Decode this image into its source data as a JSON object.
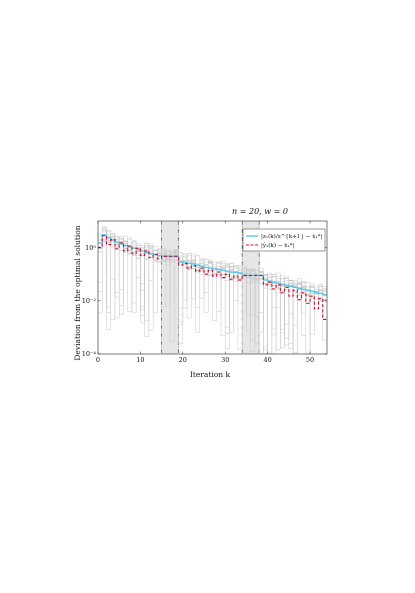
{
  "chart_data": {
    "type": "line",
    "title": "n = 20, w = 0",
    "xlabel": "Iteration k",
    "ylabel": "Deviation from the optimal solution",
    "xlim": [
      0,
      54
    ],
    "ylim": [
      0.0001,
      10
    ],
    "yscale": "log",
    "grid": false,
    "x_ticks": [
      0,
      10,
      20,
      30,
      40,
      50
    ],
    "y_ticks": [
      {
        "value": 0.0001,
        "label": "10⁻⁴"
      },
      {
        "value": 0.01,
        "label": "10⁻²"
      },
      {
        "value": 1,
        "label": "10⁰"
      }
    ],
    "shaded_regions": [
      [
        15,
        19
      ],
      [
        34,
        38
      ]
    ],
    "legend": {
      "position": "top-right",
      "entries": [
        {
          "label": "|z₁(k)/s^{k+1} − ẋ₁*|",
          "style": "solid",
          "color": "#5bc8e8"
        },
        {
          "label": "|ŷ₁(k) − ẋ₁*|",
          "style": "dashed",
          "color": "#c8102e"
        }
      ]
    },
    "series": [
      {
        "name": "|z₁(k)/s^{k+1} − ẋ₁*|",
        "style": "solid",
        "color": "#5bc8e8",
        "x": [
          0,
          1,
          2,
          3,
          4,
          5,
          6,
          7,
          8,
          9,
          10,
          11,
          12,
          13,
          14,
          15,
          16,
          17,
          18,
          19,
          20,
          21,
          22,
          23,
          24,
          25,
          26,
          27,
          28,
          29,
          30,
          31,
          32,
          33,
          34,
          35,
          36,
          37,
          38,
          39,
          40,
          41,
          42,
          43,
          44,
          45,
          46,
          47,
          48,
          49,
          50,
          51,
          52,
          53
        ],
        "values": [
          1.5,
          3.0,
          2.4,
          1.9,
          1.6,
          1.4,
          1.2,
          1.05,
          0.95,
          0.85,
          0.75,
          0.65,
          0.6,
          0.55,
          0.5,
          0.47,
          0.47,
          0.47,
          0.47,
          0.3,
          0.28,
          0.26,
          0.24,
          0.22,
          0.2,
          0.18,
          0.17,
          0.16,
          0.15,
          0.14,
          0.13,
          0.12,
          0.115,
          0.11,
          0.09,
          0.09,
          0.09,
          0.09,
          0.09,
          0.06,
          0.055,
          0.05,
          0.046,
          0.042,
          0.038,
          0.035,
          0.032,
          0.029,
          0.027,
          0.025,
          0.023,
          0.021,
          0.019,
          0.017
        ]
      },
      {
        "name": "|ŷ₁(k) − ẋ₁*|",
        "style": "dashed",
        "color": "#c8102e",
        "x": [
          0,
          1,
          2,
          3,
          4,
          5,
          6,
          7,
          8,
          9,
          10,
          11,
          12,
          13,
          14,
          15,
          16,
          17,
          18,
          19,
          20,
          21,
          22,
          23,
          24,
          25,
          26,
          27,
          28,
          29,
          30,
          31,
          32,
          33,
          34,
          35,
          36,
          37,
          38,
          39,
          40,
          41,
          42,
          43,
          44,
          45,
          46,
          47,
          48,
          49,
          50,
          51,
          52,
          53
        ],
        "values": [
          1.0,
          2.8,
          1.3,
          2.0,
          0.9,
          1.5,
          0.75,
          1.15,
          0.6,
          0.95,
          0.5,
          0.75,
          0.42,
          0.55,
          0.38,
          0.47,
          0.47,
          0.47,
          0.47,
          0.22,
          0.25,
          0.17,
          0.21,
          0.13,
          0.17,
          0.1,
          0.14,
          0.085,
          0.12,
          0.075,
          0.1,
          0.065,
          0.085,
          0.06,
          0.09,
          0.09,
          0.09,
          0.09,
          0.09,
          0.04,
          0.05,
          0.028,
          0.04,
          0.02,
          0.032,
          0.015,
          0.025,
          0.011,
          0.02,
          0.008,
          0.015,
          0.005,
          0.012,
          0.002
        ]
      }
    ]
  }
}
